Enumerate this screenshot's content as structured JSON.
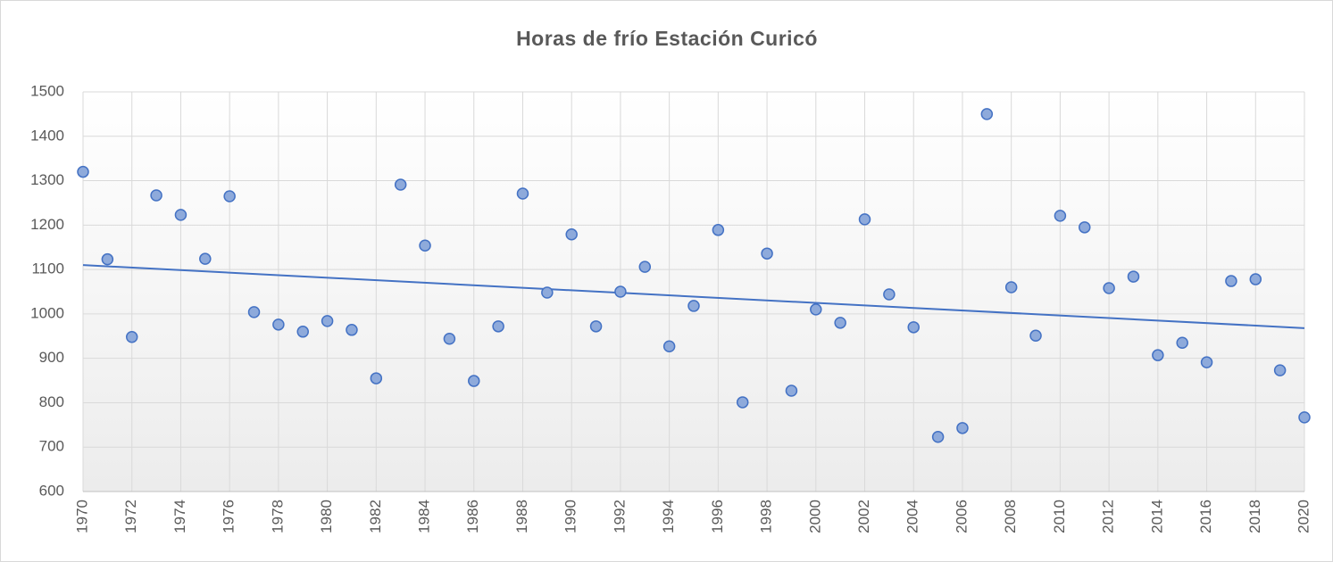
{
  "chart_data": {
    "type": "scatter",
    "title": "Horas de frío Estación Curicó",
    "x": [
      1970,
      1971,
      1972,
      1973,
      1974,
      1975,
      1976,
      1977,
      1978,
      1979,
      1980,
      1981,
      1982,
      1983,
      1984,
      1985,
      1986,
      1987,
      1988,
      1989,
      1990,
      1991,
      1992,
      1993,
      1994,
      1995,
      1996,
      1997,
      1998,
      1999,
      2000,
      2001,
      2002,
      2003,
      2004,
      2005,
      2006,
      2007,
      2008,
      2009,
      2010,
      2011,
      2012,
      2013,
      2014,
      2015,
      2016,
      2017,
      2018,
      2019,
      2020
    ],
    "values": [
      1320,
      1123,
      948,
      1267,
      1223,
      1124,
      1265,
      1004,
      976,
      960,
      984,
      964,
      855,
      1291,
      1154,
      944,
      849,
      972,
      1271,
      1048,
      1179,
      972,
      1050,
      1106,
      927,
      1018,
      1189,
      801,
      1136,
      827,
      1010,
      980,
      1213,
      1044,
      970,
      723,
      743,
      1450,
      1060,
      951,
      1221,
      1195,
      1058,
      1084,
      907,
      935,
      891,
      1074,
      1078,
      873,
      767
    ],
    "color": "#8eaadb",
    "edge_color": "#4472c4",
    "trendline": {
      "x": [
        1970,
        2020
      ],
      "values": [
        1110,
        968
      ],
      "color": "#4472c4"
    },
    "xlim": [
      1970,
      2020
    ],
    "xticks": [
      1970,
      1972,
      1974,
      1976,
      1978,
      1980,
      1982,
      1984,
      1986,
      1988,
      1990,
      1992,
      1994,
      1996,
      1998,
      2000,
      2002,
      2004,
      2006,
      2008,
      2010,
      2012,
      2014,
      2016,
      2018,
      2020
    ],
    "ylim": [
      600,
      1500
    ],
    "yticks": [
      600,
      700,
      800,
      900,
      1000,
      1100,
      1200,
      1300,
      1400,
      1500
    ],
    "grid": true
  }
}
